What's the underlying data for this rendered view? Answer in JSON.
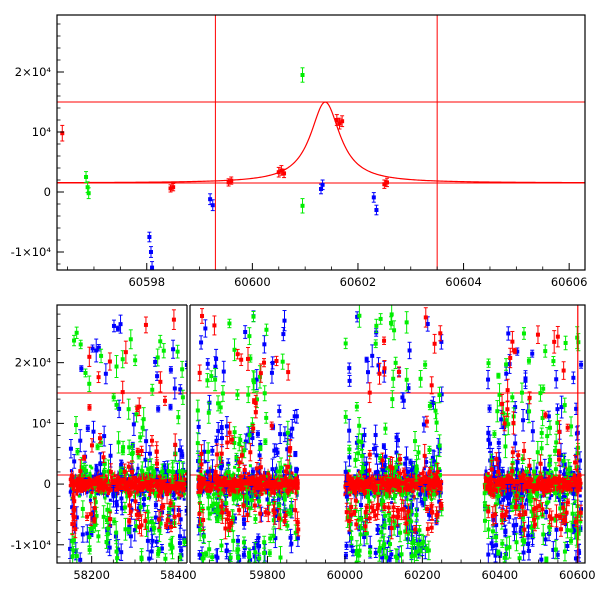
{
  "chart_data": [
    {
      "type": "scatter",
      "title": "",
      "xlabel": "",
      "ylabel": "",
      "xlim": [
        60596.3,
        60606.3
      ],
      "ylim": [
        -13000,
        29500
      ],
      "x_ticks": [
        60598,
        60600,
        60602,
        60604,
        60606
      ],
      "x_tick_labels": [
        "60598",
        "60600",
        "60602",
        "60604",
        "60606"
      ],
      "y_ticks": [
        -10000,
        0,
        10000,
        20000
      ],
      "y_tick_labels": [
        "-1×10⁴",
        "0",
        "10⁴",
        "2×10⁴"
      ],
      "hlines": [
        1500,
        15000
      ],
      "vlines": [
        60599.3,
        60603.5
      ],
      "model_curve": {
        "color": "#ff0000",
        "baseline": 1500,
        "peak": 15000,
        "t0": 60601.38,
        "width": 0.34
      },
      "colors": {
        "red": "#ff0000",
        "green": "#00ee00",
        "blue": "#0000ff"
      },
      "series": [
        {
          "color": "red",
          "points": [
            [
              60596.4,
              9800,
              1300
            ],
            [
              60598.45,
              600,
              600
            ],
            [
              60598.5,
              800,
              600
            ],
            [
              60599.55,
              1600,
              600
            ],
            [
              60599.6,
              1900,
              600
            ],
            [
              60600.5,
              3300,
              800
            ],
            [
              60600.55,
              3600,
              800
            ],
            [
              60600.6,
              3100,
              700
            ],
            [
              60601.6,
              12000,
              900
            ],
            [
              60601.65,
              11400,
              900
            ],
            [
              60601.7,
              11800,
              900
            ],
            [
              60602.5,
              1300,
              700
            ],
            [
              60602.55,
              1600,
              700
            ]
          ]
        },
        {
          "color": "green",
          "points": [
            [
              60596.85,
              2500,
              900
            ],
            [
              60596.9,
              -200,
              900
            ],
            [
              60596.88,
              800,
              900
            ],
            [
              60600.95,
              19500,
              1200
            ],
            [
              60600.95,
              -2300,
              1200
            ]
          ]
        },
        {
          "color": "blue",
          "points": [
            [
              60598.05,
              -7500,
              800
            ],
            [
              60598.08,
              -10000,
              900
            ],
            [
              60598.1,
              -12600,
              1000
            ],
            [
              60599.2,
              -1200,
              900
            ],
            [
              60599.25,
              -2200,
              900
            ],
            [
              60601.3,
              500,
              800
            ],
            [
              60601.33,
              1200,
              800
            ],
            [
              60602.3,
              -900,
              800
            ],
            [
              60602.35,
              -3000,
              800
            ]
          ]
        }
      ]
    },
    {
      "type": "scatter",
      "title": "",
      "xlabel": "",
      "ylabel": "",
      "xlim": [
        58120,
        60620
      ],
      "ylim": [
        -13000,
        29500
      ],
      "x_axis_break": {
        "from": 58420,
        "to": 59600
      },
      "x_ticks": [
        58200,
        58400,
        59800,
        60000,
        60200,
        60400,
        60600
      ],
      "x_tick_labels": [
        "58200",
        "58400",
        "59800",
        "60000",
        "60200",
        "60400",
        "60600"
      ],
      "y_ticks": [
        -10000,
        0,
        10000,
        20000
      ],
      "y_tick_labels": [
        "-1×10⁴",
        "0",
        "10⁴",
        "2×10⁴"
      ],
      "hlines": [
        1500,
        15000
      ],
      "vlines": [
        60601.4
      ],
      "seasons": [
        [
          58150,
          58420
        ],
        [
          59620,
          59880
        ],
        [
          60000,
          60250
        ],
        [
          60360,
          60610
        ]
      ],
      "colors": {
        "red": "#ff0000",
        "green": "#00ee00",
        "blue": "#0000ff"
      }
    }
  ]
}
